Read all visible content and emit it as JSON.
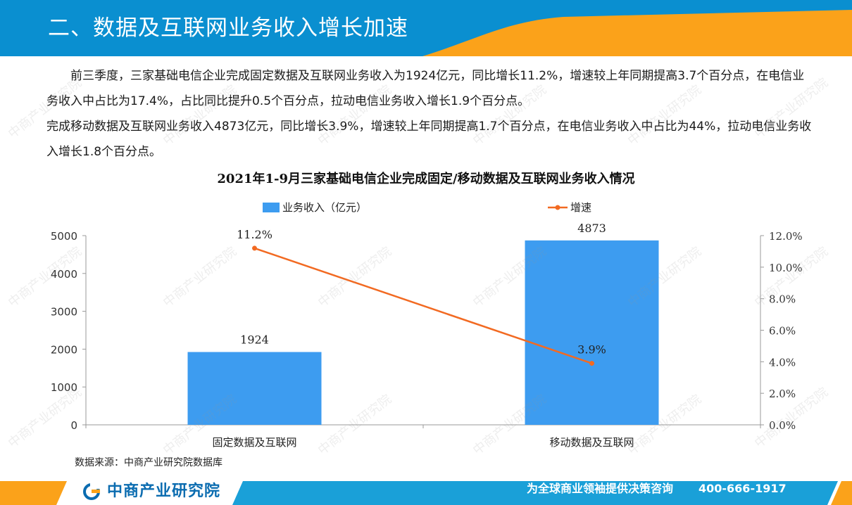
{
  "header": {
    "title": "二、数据及互联网业务收入增长加速"
  },
  "body_text": [
    "前三季度，三家基础电信企业完成固定数据及互联网业务收入为1924亿元，同比增长11.2%，增速较上年同期提高3.7个百分点，在电信业务收入中占比为17.4%，占比同比提升0.5个百分点，拉动电信业务收入增长1.9个百分点。",
    "完成移动数据及互联网业务收入4873亿元，同比增长3.9%，增速较上年同期提高1.7个百分点，在电信业务收入中占比为44%，拉动电信业务收入增长1.8个百分点。"
  ],
  "chart_data": {
    "type": "bar",
    "title": "2021年1-9月三家基础电信企业完成固定/移动数据及互联网业务收入情况",
    "categories": [
      "固定数据及互联网",
      "移动数据及互联网"
    ],
    "series": [
      {
        "name": "业务收入（亿元）",
        "type": "bar",
        "axis": "left",
        "values": [
          1924,
          4873
        ],
        "labels": [
          "1924",
          "4873"
        ],
        "color": "#3d9cf0"
      },
      {
        "name": "增速",
        "type": "line",
        "axis": "right",
        "values": [
          11.2,
          3.9
        ],
        "labels": [
          "11.2%",
          "3.9%"
        ],
        "color": "#f26a22"
      }
    ],
    "y_left": {
      "min": 0,
      "max": 5000,
      "ticks": [
        "0",
        "1000",
        "2000",
        "3000",
        "4000",
        "5000"
      ]
    },
    "y_right": {
      "min": 0,
      "max": 12,
      "ticks": [
        "0.0%",
        "2.0%",
        "4.0%",
        "6.0%",
        "8.0%",
        "10.0%",
        "12.0%"
      ]
    },
    "legend_position": "top",
    "grid": false
  },
  "source": "数据来源：中商产业研究院数据库",
  "footer": {
    "brand": "中商产业研究院",
    "slogan": "为全球商业领袖提供决策咨询",
    "phone": "400-666-1917"
  },
  "watermark": "中商产业研究院",
  "colors": {
    "header_blue": "#0a8fd0",
    "header_orange": "#fba21a",
    "footer_blue": "#1aa0d8"
  }
}
